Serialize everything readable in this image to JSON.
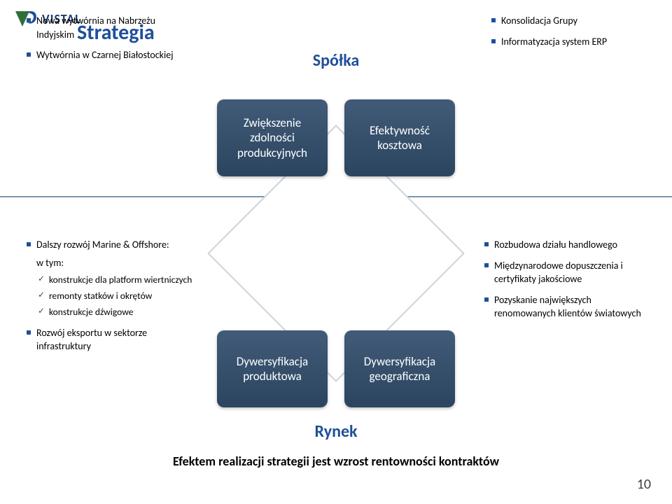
{
  "logo": {
    "text": "VISTAL",
    "color_v": "#2f6f3a",
    "color_s": "#1f4f9a",
    "text_color": "#1b3a6b"
  },
  "title": {
    "text": "Strategia",
    "color": "#1f4f9a"
  },
  "page_number": "10",
  "accent_square_color": "#1f4f9a",
  "hr": {
    "color": "#7a94b0",
    "thickness": 2
  },
  "center_labels": {
    "top": "Spółka",
    "bottom": "Rynek",
    "color": "#1f4f9a"
  },
  "boxes": {
    "bg_top": "#415b78",
    "bg_bottom": "#2b4560",
    "radius": 10,
    "items": {
      "tl": "Zwiększenie zdolności produkcyjnych",
      "tr": "Efektywność kosztowa",
      "bl": "Dywersyfikacja produktowa",
      "br": "Dywersyfikacja geograficzna"
    }
  },
  "bullets": {
    "top_left": [
      "Nowa wytwórnia na Nabrzeżu Indyjskim",
      "Wytwórnia w Czarnej Białostockiej"
    ],
    "top_right": [
      "Konsolidacja Grupy",
      "Informatyzacja  system ERP"
    ],
    "bottom_left": {
      "lead": "Dalszy rozwój Marine & Offshore:",
      "sub_intro": "w tym:",
      "subs": [
        "konstrukcje dla platform wiertniczych",
        "remonty statków i okrętów",
        "konstrukcje dźwigowe"
      ],
      "tail": "Rozwój eksportu w sektorze infrastruktury"
    },
    "bottom_right": [
      "Rozbudowa działu handlowego",
      "Międzynarodowe dopuszczenia i certyfikaty jakościowe",
      "Pozyskanie największych renomowanych klientów światowych"
    ]
  },
  "conclusion": "Efektem realizacji strategii jest wzrost rentowności kontraktów"
}
